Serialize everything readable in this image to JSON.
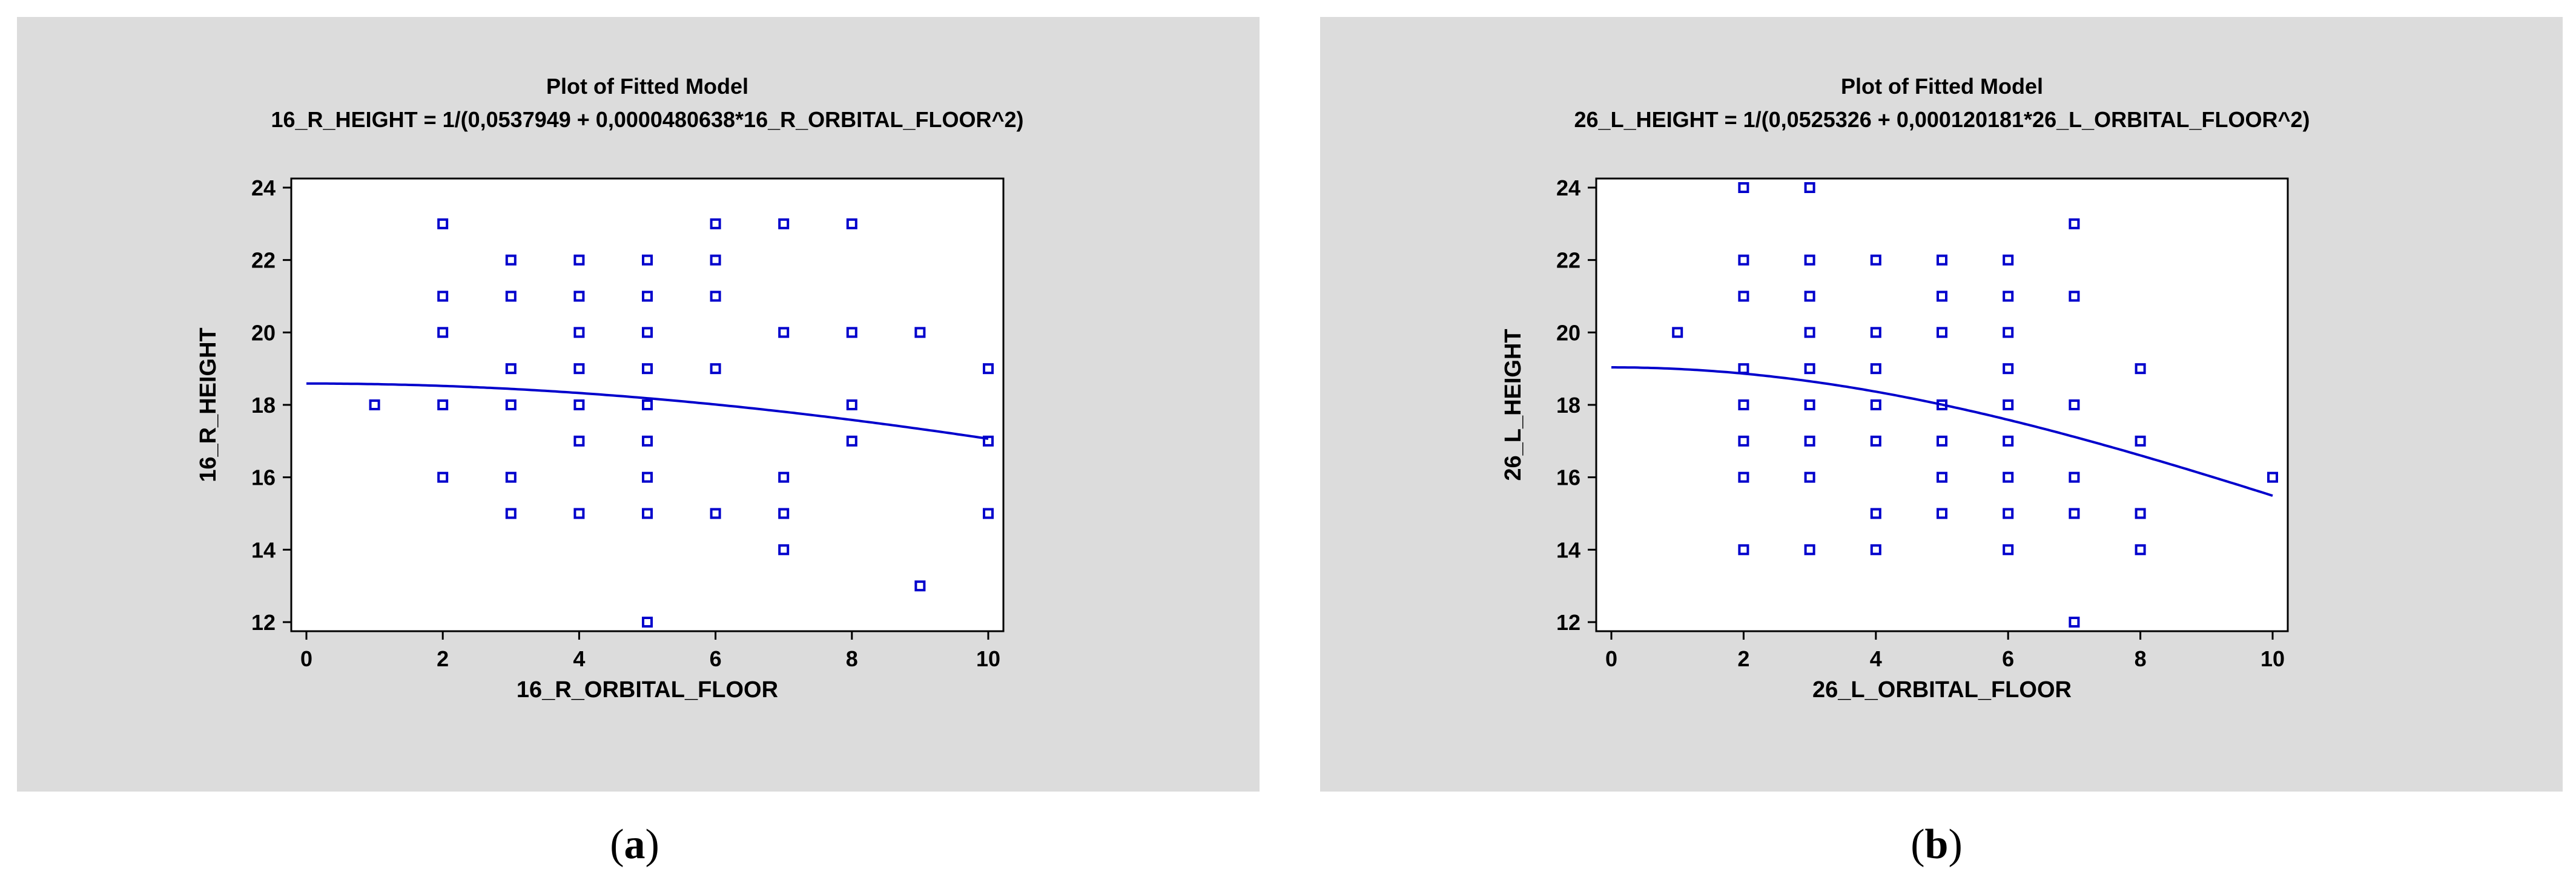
{
  "colors": {
    "panel_background": "#dcdcdc",
    "plot_background": "#ffffff",
    "series": "#0000cc",
    "text": "#000000"
  },
  "panels": [
    {
      "caption_open": "(",
      "caption_letter": "a",
      "caption_close": ")"
    },
    {
      "caption_open": "(",
      "caption_letter": "b",
      "caption_close": ")"
    }
  ],
  "chart_data": [
    {
      "type": "scatter",
      "title": "Plot of Fitted Model",
      "subtitle": "16_R_HEIGHT = 1/(0,0537949 + 0,0000480638*16_R_ORBITAL_FLOOR^2)",
      "xlabel": "16_R_ORBITAL_FLOOR",
      "ylabel": "16_R_HEIGHT",
      "xlim": [
        0,
        10
      ],
      "ylim": [
        12,
        24
      ],
      "xticks": [
        "0",
        "2",
        "4",
        "6",
        "8",
        "10"
      ],
      "yticks": [
        "12",
        "14",
        "16",
        "18",
        "20",
        "22",
        "24"
      ],
      "grid": false,
      "marker": "open-square",
      "points": [
        [
          1,
          18
        ],
        [
          2,
          23
        ],
        [
          2,
          21
        ],
        [
          2,
          20
        ],
        [
          2,
          18
        ],
        [
          2,
          16
        ],
        [
          3,
          22
        ],
        [
          3,
          21
        ],
        [
          3,
          19
        ],
        [
          3,
          18
        ],
        [
          3,
          16
        ],
        [
          3,
          15
        ],
        [
          4,
          22
        ],
        [
          4,
          21
        ],
        [
          4,
          20
        ],
        [
          4,
          19
        ],
        [
          4,
          18
        ],
        [
          4,
          17
        ],
        [
          4,
          15
        ],
        [
          5,
          22
        ],
        [
          5,
          21
        ],
        [
          5,
          20
        ],
        [
          5,
          19
        ],
        [
          5,
          18
        ],
        [
          5,
          17
        ],
        [
          5,
          16
        ],
        [
          5,
          15
        ],
        [
          5,
          12
        ],
        [
          6,
          23
        ],
        [
          6,
          22
        ],
        [
          6,
          21
        ],
        [
          6,
          19
        ],
        [
          6,
          15
        ],
        [
          7,
          23
        ],
        [
          7,
          20
        ],
        [
          7,
          16
        ],
        [
          7,
          15
        ],
        [
          7,
          14
        ],
        [
          8,
          23
        ],
        [
          8,
          20
        ],
        [
          8,
          18
        ],
        [
          8,
          17
        ],
        [
          9,
          20
        ],
        [
          9,
          13
        ],
        [
          10,
          19
        ],
        [
          10,
          17
        ],
        [
          10,
          15
        ]
      ],
      "fit": {
        "a": 0.0537949,
        "b": 4.80638e-05
      }
    },
    {
      "type": "scatter",
      "title": "Plot of Fitted Model",
      "subtitle": "26_L_HEIGHT = 1/(0,0525326 + 0,000120181*26_L_ORBITAL_FLOOR^2)",
      "xlabel": "26_L_ORBITAL_FLOOR",
      "ylabel": "26_L_HEIGHT",
      "xlim": [
        0,
        10
      ],
      "ylim": [
        12,
        24
      ],
      "xticks": [
        "0",
        "2",
        "4",
        "6",
        "8",
        "10"
      ],
      "yticks": [
        "12",
        "14",
        "16",
        "18",
        "20",
        "22",
        "24"
      ],
      "grid": false,
      "marker": "open-square",
      "points": [
        [
          1,
          20
        ],
        [
          2,
          24
        ],
        [
          2,
          22
        ],
        [
          2,
          21
        ],
        [
          2,
          19
        ],
        [
          2,
          18
        ],
        [
          2,
          17
        ],
        [
          2,
          16
        ],
        [
          2,
          14
        ],
        [
          3,
          24
        ],
        [
          3,
          22
        ],
        [
          3,
          21
        ],
        [
          3,
          20
        ],
        [
          3,
          19
        ],
        [
          3,
          18
        ],
        [
          3,
          17
        ],
        [
          3,
          16
        ],
        [
          3,
          14
        ],
        [
          4,
          22
        ],
        [
          4,
          20
        ],
        [
          4,
          19
        ],
        [
          4,
          18
        ],
        [
          4,
          17
        ],
        [
          4,
          15
        ],
        [
          4,
          14
        ],
        [
          5,
          22
        ],
        [
          5,
          21
        ],
        [
          5,
          20
        ],
        [
          5,
          18
        ],
        [
          5,
          17
        ],
        [
          5,
          16
        ],
        [
          5,
          15
        ],
        [
          6,
          22
        ],
        [
          6,
          21
        ],
        [
          6,
          20
        ],
        [
          6,
          19
        ],
        [
          6,
          18
        ],
        [
          6,
          17
        ],
        [
          6,
          16
        ],
        [
          6,
          15
        ],
        [
          6,
          14
        ],
        [
          7,
          23
        ],
        [
          7,
          21
        ],
        [
          7,
          18
        ],
        [
          7,
          16
        ],
        [
          7,
          15
        ],
        [
          7,
          12
        ],
        [
          8,
          19
        ],
        [
          8,
          17
        ],
        [
          8,
          15
        ],
        [
          8,
          14
        ],
        [
          10,
          16
        ]
      ],
      "fit": {
        "a": 0.0525326,
        "b": 0.000120181
      }
    }
  ]
}
